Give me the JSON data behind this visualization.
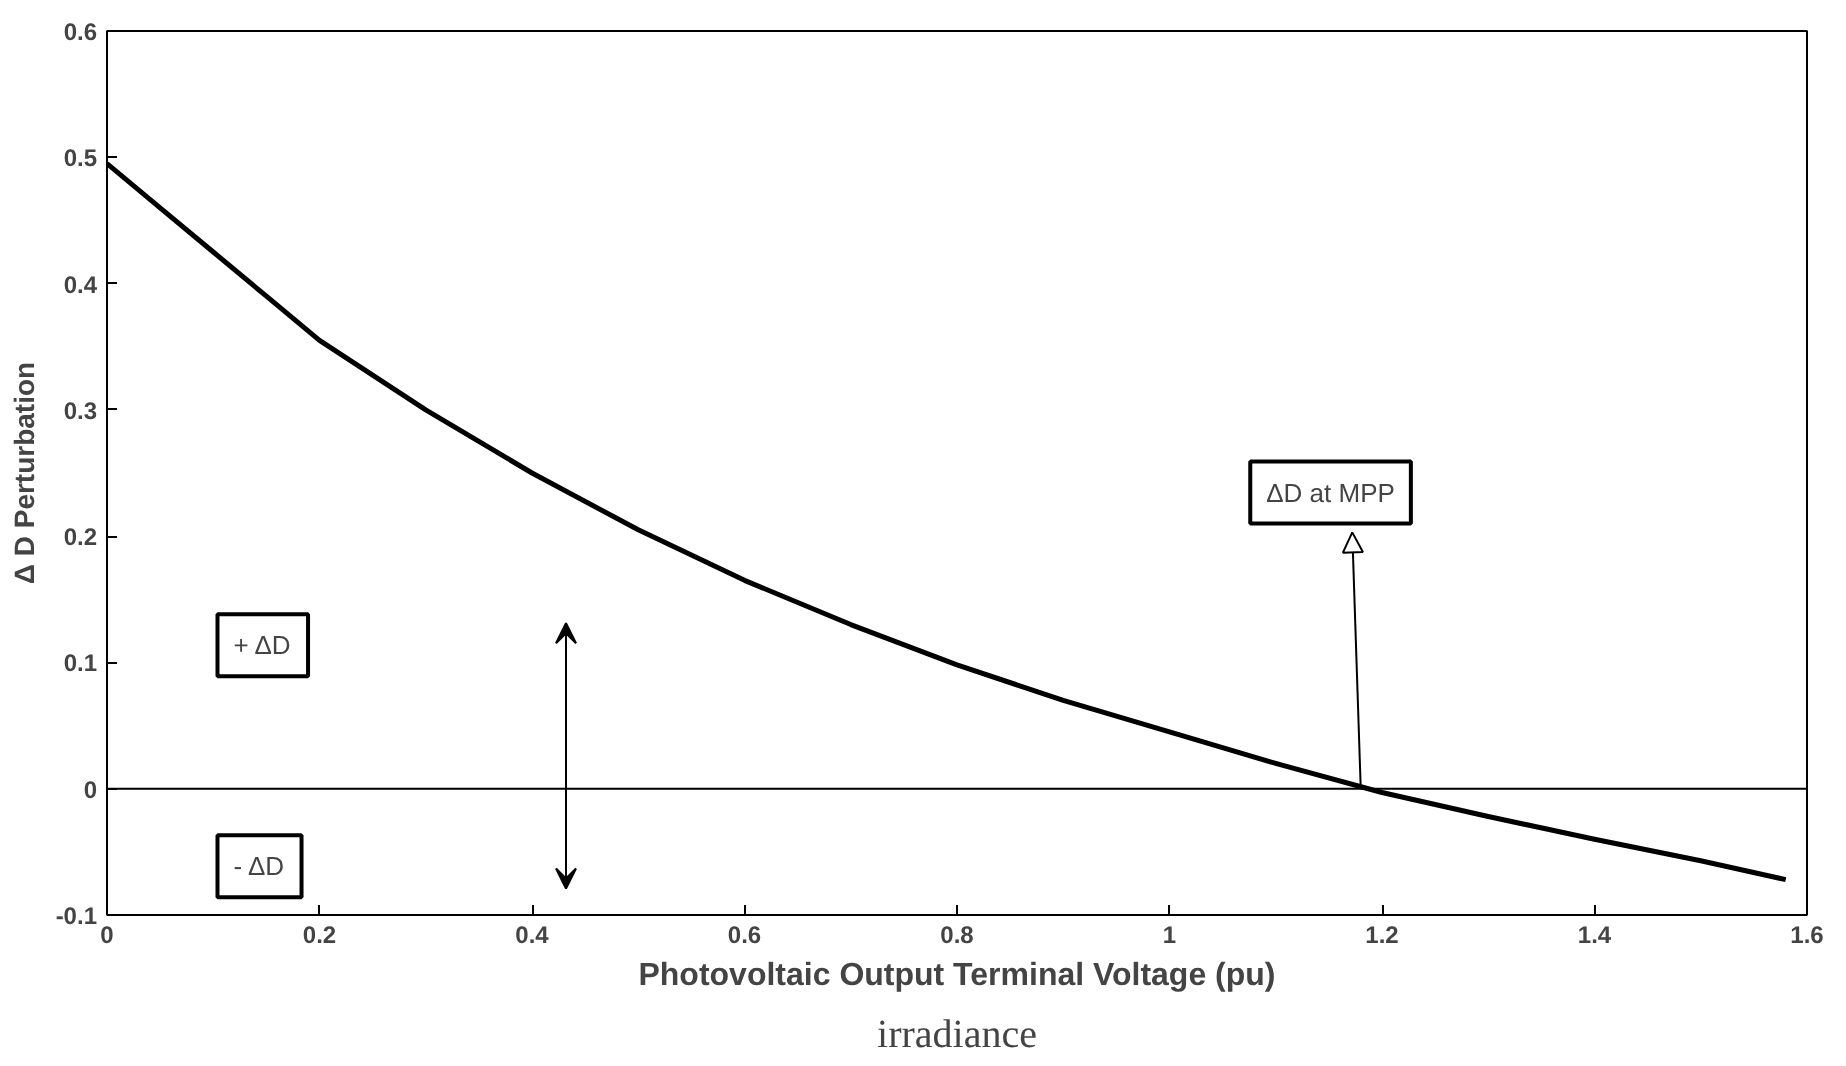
{
  "chart_data": {
    "type": "line",
    "xlabel": "Photovoltaic Output Terminal Voltage (pu)",
    "ylabel": "Δ D Perturbation",
    "x": [
      0,
      0.05,
      0.1,
      0.15,
      0.2,
      0.3,
      0.4,
      0.5,
      0.6,
      0.7,
      0.8,
      0.9,
      1.0,
      1.1,
      1.2,
      1.3,
      1.4,
      1.5,
      1.58
    ],
    "series": [
      {
        "color": "#000000",
        "values": [
          0.495,
          0.46,
          0.425,
          0.39,
          0.355,
          0.3,
          0.25,
          0.205,
          0.165,
          0.13,
          0.098,
          0.07,
          0.045,
          0.02,
          -0.003,
          -0.022,
          -0.04,
          -0.057,
          -0.072
        ]
      }
    ],
    "xlim": [
      0,
      1.6
    ],
    "ylim": [
      -0.1,
      0.6
    ],
    "xticks": [
      0,
      0.2,
      0.4,
      0.6,
      0.8,
      1,
      1.2,
      1.4,
      1.6
    ],
    "yticks": [
      -0.1,
      0,
      0.1,
      0.2,
      0.3,
      0.4,
      0.5,
      0.6
    ],
    "ref_lines": [
      {
        "axis": "y",
        "value": 0,
        "color": "#000000"
      }
    ],
    "annotations": [
      "+ ΔD",
      "- ΔD",
      {
        "text": "ΔD at MPP",
        "x": 1.18,
        "y": 0
      },
      "irradiance"
    ],
    "grid": false,
    "marker": "none",
    "line_style": "solid"
  }
}
